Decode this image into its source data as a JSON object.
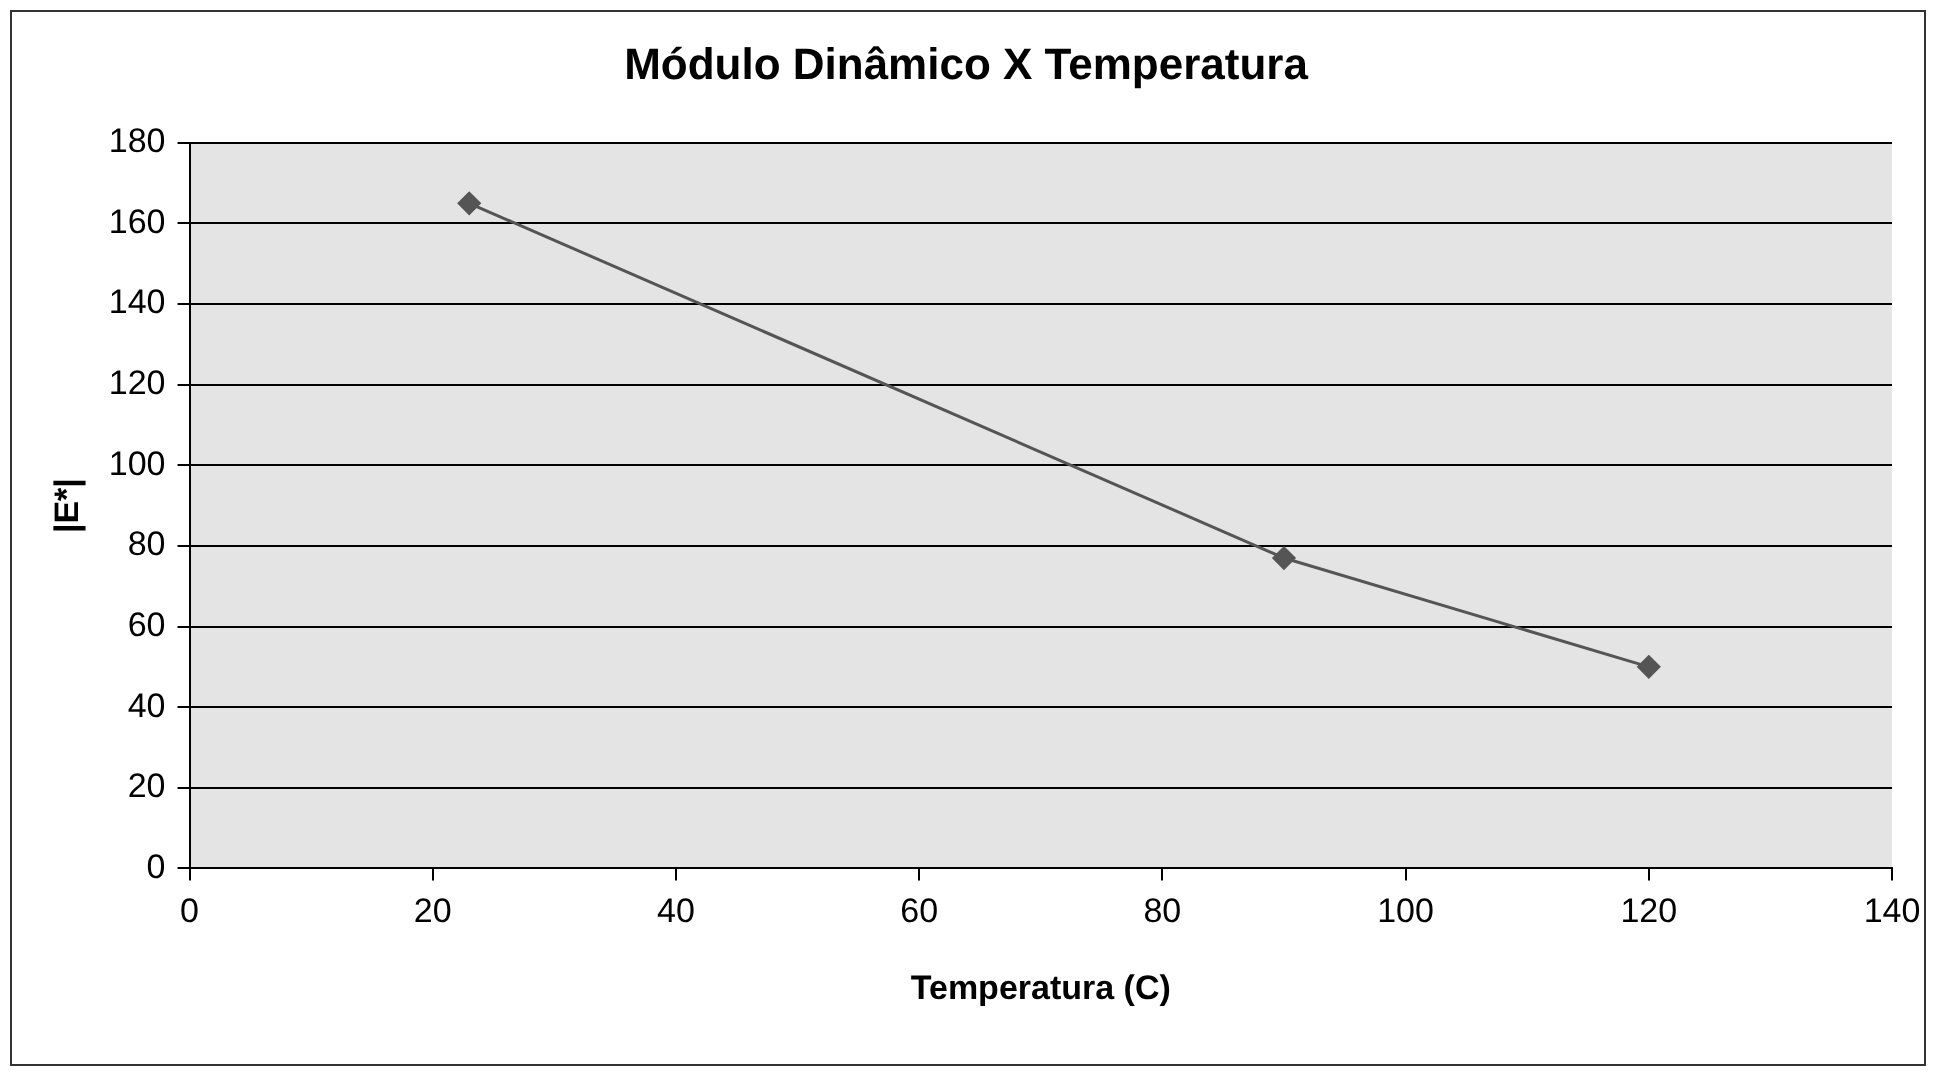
{
  "chart_data": {
    "type": "line",
    "title": "Módulo Dinâmico X Temperatura",
    "xlabel": "Temperatura (C)",
    "ylabel": "|E*|",
    "x": [
      23,
      90,
      120
    ],
    "series": [
      {
        "color": "#555555",
        "values": [
          165,
          77,
          50
        ]
      }
    ],
    "xlim": [
      0,
      140
    ],
    "xticks": [
      0,
      20,
      40,
      60,
      80,
      100,
      120,
      140
    ],
    "ylim": [
      0,
      180
    ],
    "yticks": [
      0,
      20,
      40,
      60,
      80,
      100,
      120,
      140,
      160,
      180
    ],
    "grid": "y",
    "legend": false,
    "marker": "diamond",
    "line_style": "solid"
  }
}
